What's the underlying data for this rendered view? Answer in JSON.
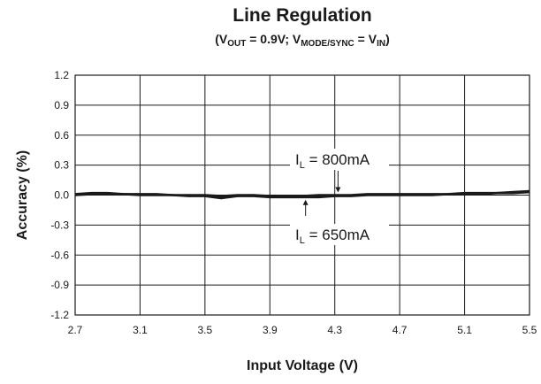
{
  "chart_data": {
    "type": "line",
    "title": "Line Regulation",
    "subtitle": {
      "open": "(V",
      "v1_sub": "OUT",
      "mid1": " = 0.9V; V",
      "v2_sub": "MODE/SYNC",
      "mid2": " = V",
      "v3_sub": "IN",
      "close": ")"
    },
    "xlabel": "Input Voltage (V)",
    "ylabel": "Accuracy (%)",
    "xlim": [
      2.7,
      5.5
    ],
    "ylim": [
      -1.2,
      1.2
    ],
    "x_ticks": [
      "2.7",
      "3.1",
      "3.5",
      "3.9",
      "4.3",
      "4.7",
      "5.1",
      "5.5"
    ],
    "y_ticks": [
      "1.2",
      "0.9",
      "0.6",
      "0.3",
      "0.0",
      "-0.3",
      "-0.6",
      "-0.9",
      "-1.2"
    ],
    "grid": true,
    "series": [
      {
        "name": "IL = 800mA",
        "x": [
          2.7,
          2.8,
          2.9,
          3.0,
          3.1,
          3.2,
          3.3,
          3.4,
          3.5,
          3.6,
          3.7,
          3.8,
          3.9,
          4.0,
          4.1,
          4.2,
          4.3,
          4.4,
          4.5,
          4.6,
          4.7,
          4.8,
          4.9,
          5.0,
          5.1,
          5.2,
          5.3,
          5.4,
          5.5
        ],
        "values": [
          0.01,
          0.02,
          0.02,
          0.01,
          0.01,
          0.01,
          0.0,
          0.0,
          0.0,
          -0.01,
          0.0,
          0.0,
          -0.01,
          -0.01,
          -0.01,
          0.0,
          0.0,
          0.0,
          0.01,
          0.01,
          0.01,
          0.01,
          0.01,
          0.01,
          0.02,
          0.02,
          0.02,
          0.03,
          0.04
        ]
      },
      {
        "name": "IL = 650mA",
        "x": [
          2.7,
          2.8,
          2.9,
          3.0,
          3.1,
          3.2,
          3.3,
          3.4,
          3.5,
          3.6,
          3.7,
          3.8,
          3.9,
          4.0,
          4.1,
          4.2,
          4.3,
          4.4,
          4.5,
          4.6,
          4.7,
          4.8,
          4.9,
          5.0,
          5.1,
          5.2,
          5.3,
          5.4,
          5.5
        ],
        "values": [
          0.0,
          0.01,
          0.01,
          0.01,
          0.0,
          0.0,
          0.0,
          -0.01,
          -0.01,
          -0.03,
          -0.01,
          -0.01,
          -0.02,
          -0.02,
          -0.02,
          -0.02,
          -0.01,
          -0.01,
          0.0,
          0.0,
          0.0,
          0.0,
          0.0,
          0.01,
          0.01,
          0.01,
          0.02,
          0.02,
          0.03
        ]
      }
    ],
    "annotations": [
      {
        "series": 0,
        "prefix": "I",
        "sub": "L",
        "suffix": " = 800mA",
        "x": 4.32
      },
      {
        "series": 1,
        "prefix": "I",
        "sub": "L",
        "suffix": " = 650mA",
        "x": 4.12
      }
    ],
    "colors": {
      "line": "#1a1a1a",
      "grid": "#1a1a1a",
      "axis": "#1a1a1a"
    }
  }
}
